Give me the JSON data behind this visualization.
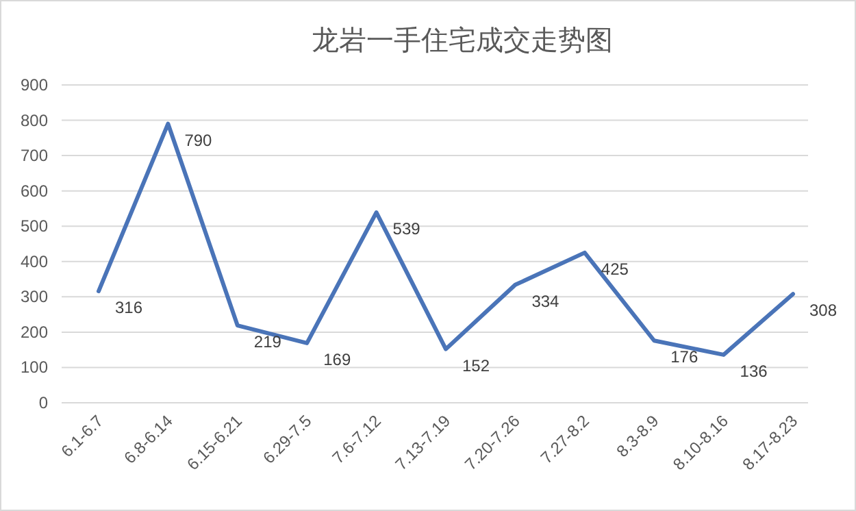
{
  "chart_data": {
    "type": "line",
    "title": "龙岩一手住宅成交走势图",
    "categories": [
      "6.1-6.7",
      "6.8-6.14",
      "6.15-6.21",
      "6.29-7.5",
      "7.6-7.12",
      "7.13-7.19",
      "7.20-7.26",
      "7.27-8.2",
      "8.3-8.9",
      "8.10-8.16",
      "8.17-8.23"
    ],
    "values": [
      316,
      790,
      219,
      169,
      539,
      152,
      334,
      425,
      176,
      136,
      308
    ],
    "color": "#4a74b8",
    "ylim": [
      0,
      900
    ],
    "yticks": [
      0,
      100,
      200,
      300,
      400,
      500,
      600,
      700,
      800,
      900
    ],
    "grid": "y",
    "data_labels": true
  }
}
